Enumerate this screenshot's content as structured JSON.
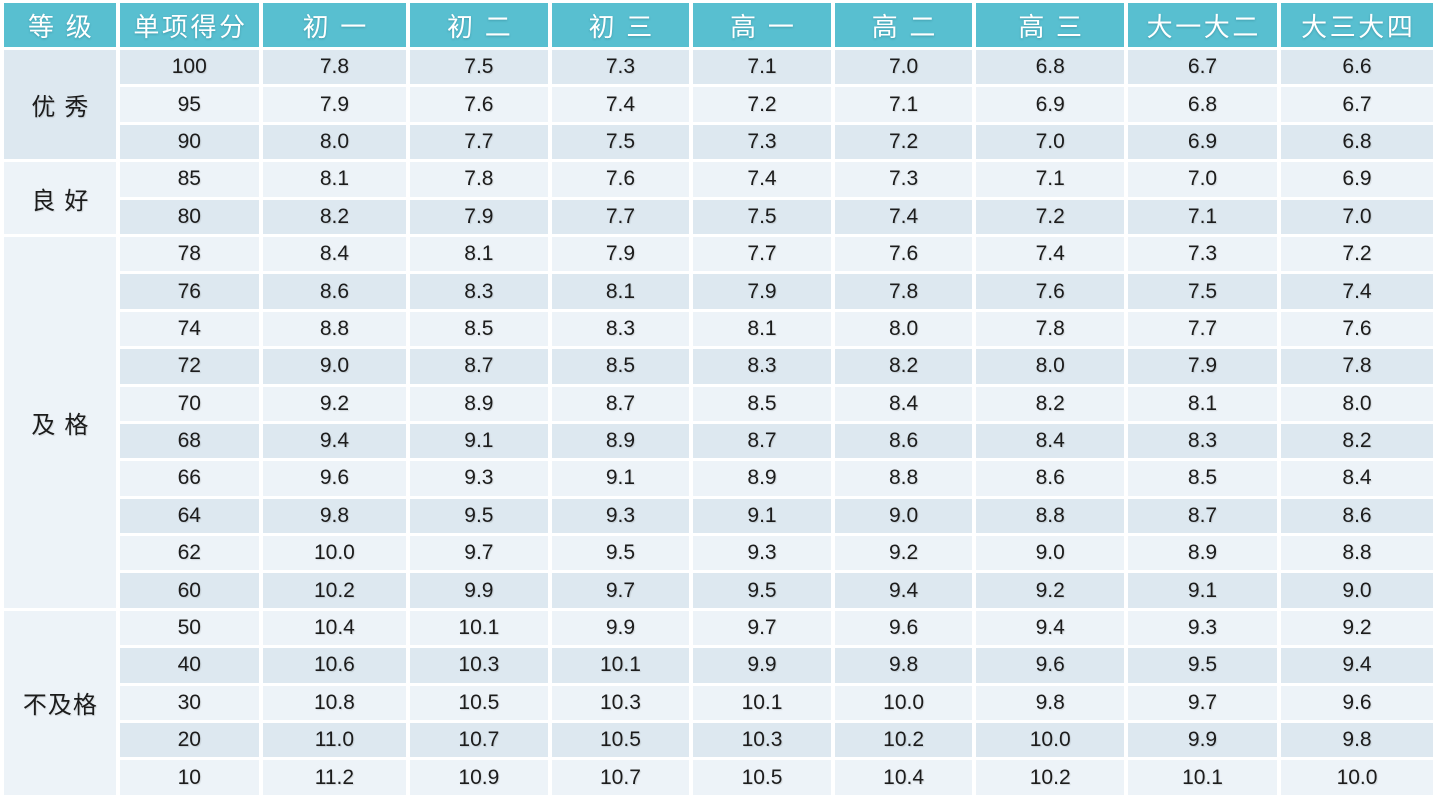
{
  "colors": {
    "header_bg": "#58bfd0",
    "header_text": "#ffffff",
    "row_stripe_dark": "#dde8f0",
    "row_stripe_light": "#edf3f8",
    "body_text": "#1c1c1c",
    "grid_border": "#ffffff"
  },
  "chart_data": {
    "type": "table",
    "title": "",
    "columns": [
      "等级",
      "单项得分",
      "初一",
      "初二",
      "初三",
      "高一",
      "高二",
      "高三",
      "大一大二",
      "大三大四"
    ],
    "column_widths_pct": [
      7.8,
      9.7,
      10.0,
      9.6,
      9.6,
      9.6,
      9.6,
      10.3,
      10.4,
      10.6
    ],
    "grid": "white gaps between cells, alternating row stripes",
    "groups": [
      {
        "label": "优秀",
        "rows": [
          [
            "100",
            "7.8",
            "7.5",
            "7.3",
            "7.1",
            "7.0",
            "6.8",
            "6.7",
            "6.6"
          ],
          [
            "95",
            "7.9",
            "7.6",
            "7.4",
            "7.2",
            "7.1",
            "6.9",
            "6.8",
            "6.7"
          ],
          [
            "90",
            "8.0",
            "7.7",
            "7.5",
            "7.3",
            "7.2",
            "7.0",
            "6.9",
            "6.8"
          ]
        ]
      },
      {
        "label": "良好",
        "rows": [
          [
            "85",
            "8.1",
            "7.8",
            "7.6",
            "7.4",
            "7.3",
            "7.1",
            "7.0",
            "6.9"
          ],
          [
            "80",
            "8.2",
            "7.9",
            "7.7",
            "7.5",
            "7.4",
            "7.2",
            "7.1",
            "7.0"
          ]
        ]
      },
      {
        "label": "及格",
        "rows": [
          [
            "78",
            "8.4",
            "8.1",
            "7.9",
            "7.7",
            "7.6",
            "7.4",
            "7.3",
            "7.2"
          ],
          [
            "76",
            "8.6",
            "8.3",
            "8.1",
            "7.9",
            "7.8",
            "7.6",
            "7.5",
            "7.4"
          ],
          [
            "74",
            "8.8",
            "8.5",
            "8.3",
            "8.1",
            "8.0",
            "7.8",
            "7.7",
            "7.6"
          ],
          [
            "72",
            "9.0",
            "8.7",
            "8.5",
            "8.3",
            "8.2",
            "8.0",
            "7.9",
            "7.8"
          ],
          [
            "70",
            "9.2",
            "8.9",
            "8.7",
            "8.5",
            "8.4",
            "8.2",
            "8.1",
            "8.0"
          ],
          [
            "68",
            "9.4",
            "9.1",
            "8.9",
            "8.7",
            "8.6",
            "8.4",
            "8.3",
            "8.2"
          ],
          [
            "66",
            "9.6",
            "9.3",
            "9.1",
            "8.9",
            "8.8",
            "8.6",
            "8.5",
            "8.4"
          ],
          [
            "64",
            "9.8",
            "9.5",
            "9.3",
            "9.1",
            "9.0",
            "8.8",
            "8.7",
            "8.6"
          ],
          [
            "62",
            "10.0",
            "9.7",
            "9.5",
            "9.3",
            "9.2",
            "9.0",
            "8.9",
            "8.8"
          ],
          [
            "60",
            "10.2",
            "9.9",
            "9.7",
            "9.5",
            "9.4",
            "9.2",
            "9.1",
            "9.0"
          ]
        ]
      },
      {
        "label": "不及格",
        "rows": [
          [
            "50",
            "10.4",
            "10.1",
            "9.9",
            "9.7",
            "9.6",
            "9.4",
            "9.3",
            "9.2"
          ],
          [
            "40",
            "10.6",
            "10.3",
            "10.1",
            "9.9",
            "9.8",
            "9.6",
            "9.5",
            "9.4"
          ],
          [
            "30",
            "10.8",
            "10.5",
            "10.3",
            "10.1",
            "10.0",
            "9.8",
            "9.7",
            "9.6"
          ],
          [
            "20",
            "11.0",
            "10.7",
            "10.5",
            "10.3",
            "10.2",
            "10.0",
            "9.9",
            "9.8"
          ],
          [
            "10",
            "11.2",
            "10.9",
            "10.7",
            "10.5",
            "10.4",
            "10.2",
            "10.1",
            "10.0"
          ]
        ]
      }
    ]
  }
}
